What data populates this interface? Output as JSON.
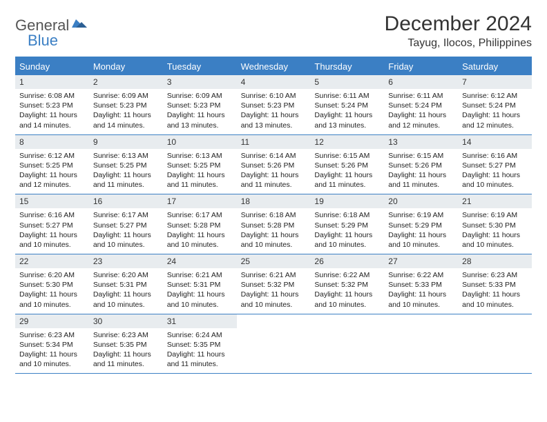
{
  "brand": {
    "general": "General",
    "blue": "Blue"
  },
  "title": "December 2024",
  "location": "Tayug, Ilocos, Philippines",
  "colors": {
    "accent": "#3b7fc4",
    "daynum_bg": "#e8ecef",
    "text": "#222222",
    "bg": "#ffffff"
  },
  "dow": [
    "Sunday",
    "Monday",
    "Tuesday",
    "Wednesday",
    "Thursday",
    "Friday",
    "Saturday"
  ],
  "layout": {
    "start_dow": 0,
    "days_in_month": 31
  },
  "days": {
    "1": {
      "sunrise": "6:08 AM",
      "sunset": "5:23 PM",
      "daylight": "11 hours and 14 minutes."
    },
    "2": {
      "sunrise": "6:09 AM",
      "sunset": "5:23 PM",
      "daylight": "11 hours and 14 minutes."
    },
    "3": {
      "sunrise": "6:09 AM",
      "sunset": "5:23 PM",
      "daylight": "11 hours and 13 minutes."
    },
    "4": {
      "sunrise": "6:10 AM",
      "sunset": "5:23 PM",
      "daylight": "11 hours and 13 minutes."
    },
    "5": {
      "sunrise": "6:11 AM",
      "sunset": "5:24 PM",
      "daylight": "11 hours and 13 minutes."
    },
    "6": {
      "sunrise": "6:11 AM",
      "sunset": "5:24 PM",
      "daylight": "11 hours and 12 minutes."
    },
    "7": {
      "sunrise": "6:12 AM",
      "sunset": "5:24 PM",
      "daylight": "11 hours and 12 minutes."
    },
    "8": {
      "sunrise": "6:12 AM",
      "sunset": "5:25 PM",
      "daylight": "11 hours and 12 minutes."
    },
    "9": {
      "sunrise": "6:13 AM",
      "sunset": "5:25 PM",
      "daylight": "11 hours and 11 minutes."
    },
    "10": {
      "sunrise": "6:13 AM",
      "sunset": "5:25 PM",
      "daylight": "11 hours and 11 minutes."
    },
    "11": {
      "sunrise": "6:14 AM",
      "sunset": "5:26 PM",
      "daylight": "11 hours and 11 minutes."
    },
    "12": {
      "sunrise": "6:15 AM",
      "sunset": "5:26 PM",
      "daylight": "11 hours and 11 minutes."
    },
    "13": {
      "sunrise": "6:15 AM",
      "sunset": "5:26 PM",
      "daylight": "11 hours and 11 minutes."
    },
    "14": {
      "sunrise": "6:16 AM",
      "sunset": "5:27 PM",
      "daylight": "11 hours and 10 minutes."
    },
    "15": {
      "sunrise": "6:16 AM",
      "sunset": "5:27 PM",
      "daylight": "11 hours and 10 minutes."
    },
    "16": {
      "sunrise": "6:17 AM",
      "sunset": "5:27 PM",
      "daylight": "11 hours and 10 minutes."
    },
    "17": {
      "sunrise": "6:17 AM",
      "sunset": "5:28 PM",
      "daylight": "11 hours and 10 minutes."
    },
    "18": {
      "sunrise": "6:18 AM",
      "sunset": "5:28 PM",
      "daylight": "11 hours and 10 minutes."
    },
    "19": {
      "sunrise": "6:18 AM",
      "sunset": "5:29 PM",
      "daylight": "11 hours and 10 minutes."
    },
    "20": {
      "sunrise": "6:19 AM",
      "sunset": "5:29 PM",
      "daylight": "11 hours and 10 minutes."
    },
    "21": {
      "sunrise": "6:19 AM",
      "sunset": "5:30 PM",
      "daylight": "11 hours and 10 minutes."
    },
    "22": {
      "sunrise": "6:20 AM",
      "sunset": "5:30 PM",
      "daylight": "11 hours and 10 minutes."
    },
    "23": {
      "sunrise": "6:20 AM",
      "sunset": "5:31 PM",
      "daylight": "11 hours and 10 minutes."
    },
    "24": {
      "sunrise": "6:21 AM",
      "sunset": "5:31 PM",
      "daylight": "11 hours and 10 minutes."
    },
    "25": {
      "sunrise": "6:21 AM",
      "sunset": "5:32 PM",
      "daylight": "11 hours and 10 minutes."
    },
    "26": {
      "sunrise": "6:22 AM",
      "sunset": "5:32 PM",
      "daylight": "11 hours and 10 minutes."
    },
    "27": {
      "sunrise": "6:22 AM",
      "sunset": "5:33 PM",
      "daylight": "11 hours and 10 minutes."
    },
    "28": {
      "sunrise": "6:23 AM",
      "sunset": "5:33 PM",
      "daylight": "11 hours and 10 minutes."
    },
    "29": {
      "sunrise": "6:23 AM",
      "sunset": "5:34 PM",
      "daylight": "11 hours and 10 minutes."
    },
    "30": {
      "sunrise": "6:23 AM",
      "sunset": "5:35 PM",
      "daylight": "11 hours and 11 minutes."
    },
    "31": {
      "sunrise": "6:24 AM",
      "sunset": "5:35 PM",
      "daylight": "11 hours and 11 minutes."
    }
  },
  "labels": {
    "sunrise": "Sunrise:",
    "sunset": "Sunset:",
    "daylight": "Daylight:"
  }
}
